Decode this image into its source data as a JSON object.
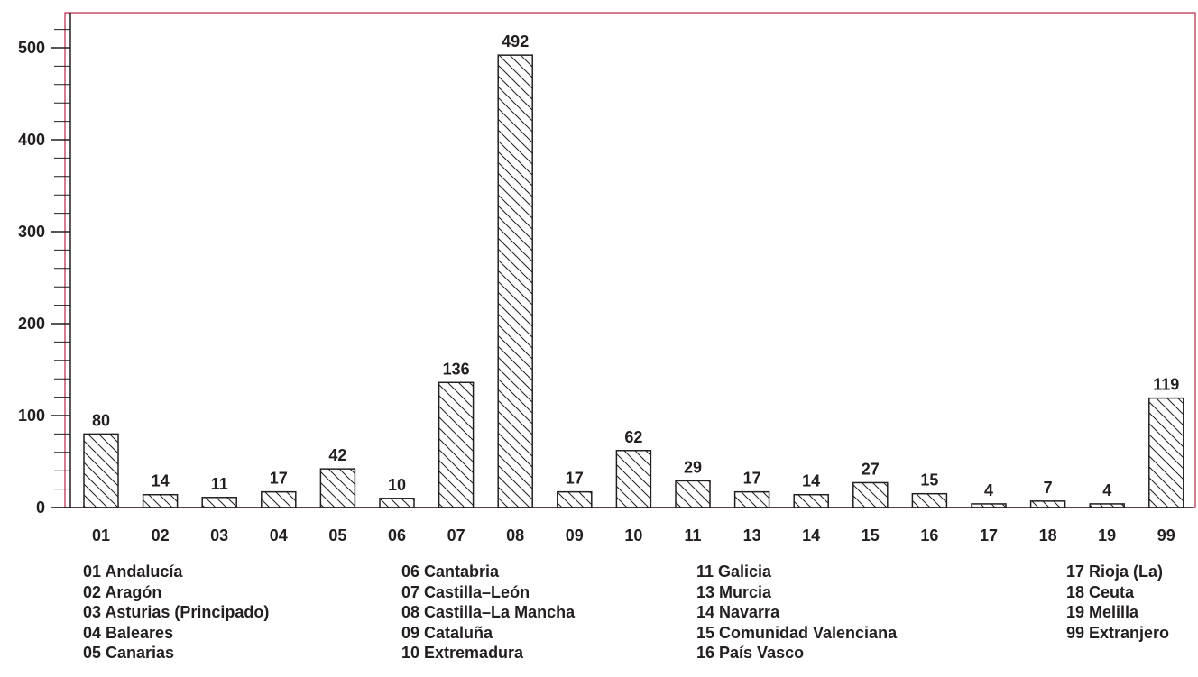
{
  "chart_data": {
    "type": "bar",
    "categories": [
      "01",
      "02",
      "03",
      "04",
      "05",
      "06",
      "07",
      "08",
      "09",
      "10",
      "11",
      "13",
      "14",
      "15",
      "16",
      "17",
      "18",
      "19",
      "99"
    ],
    "values": [
      80,
      14,
      11,
      17,
      42,
      10,
      136,
      492,
      17,
      62,
      29,
      17,
      14,
      27,
      15,
      4,
      7,
      4,
      119
    ],
    "yticks": [
      "0",
      "100",
      "200",
      "300",
      "400",
      "500"
    ],
    "ylim": [
      0,
      540
    ],
    "bar_fill": "hatched",
    "colors": {
      "frame": "#c9506a",
      "bar": "#231f20",
      "text": "#231f20"
    },
    "legend": [
      [
        "01 Andalucía",
        "02 Aragón",
        "03 Asturias (Principado)",
        "04 Baleares",
        "05 Canarias"
      ],
      [
        "06 Cantabria",
        "07 Castilla–León",
        "08 Castilla–La Mancha",
        "09 Cataluña",
        "10 Extremadura"
      ],
      [
        "11 Galicia",
        "13 Murcia",
        "14 Navarra",
        "15 Comunidad Valenciana",
        "16 País Vasco"
      ],
      [
        "17 Rioja (La)",
        "18 Ceuta",
        "19 Melilla",
        "99 Extranjero"
      ]
    ]
  }
}
